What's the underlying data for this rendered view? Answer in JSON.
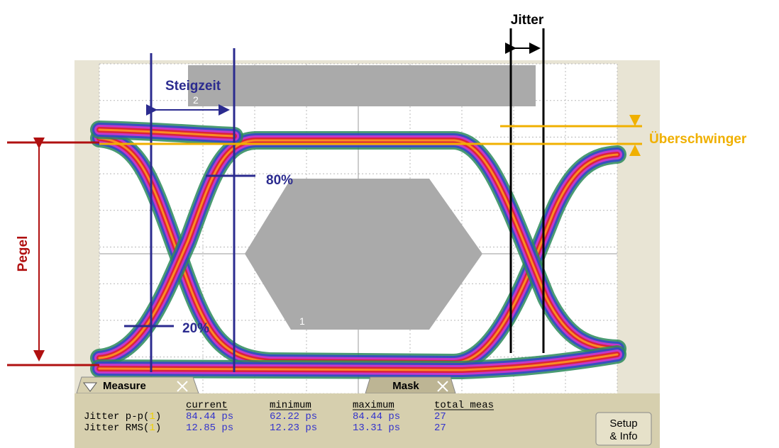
{
  "annotations": {
    "jitter": "Jitter",
    "rise_time": "Steigzeit",
    "level_high": "80%",
    "level_low": "20%",
    "level": "Pegel",
    "overshoot": "Überschwinger"
  },
  "mask_labels": [
    "1",
    "2"
  ],
  "panel": {
    "tabs": [
      "Measure",
      "Mask"
    ],
    "headers": [
      "current",
      "minimum",
      "maximum",
      "total meas"
    ],
    "rows": [
      {
        "label_parts": [
          "Jitter p-p(",
          "1",
          ")"
        ],
        "cells": [
          "84.44 ps",
          "62.22 ps",
          "84.44 ps",
          "27"
        ]
      },
      {
        "label_parts": [
          "Jitter RMS(",
          "1",
          ")"
        ],
        "cells": [
          "12.85 ps",
          "12.23 ps",
          "13.31 ps",
          "27"
        ]
      }
    ],
    "button": [
      "Setup",
      "& Info"
    ]
  }
}
